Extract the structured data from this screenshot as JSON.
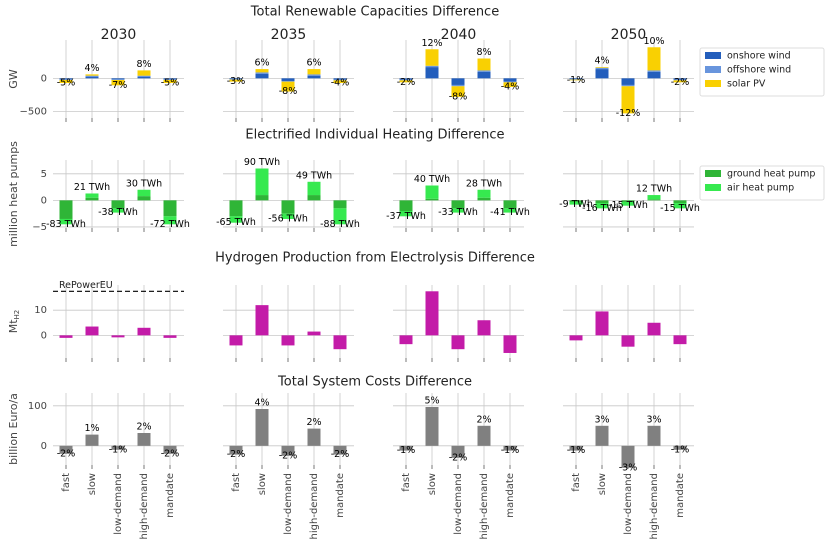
{
  "chart_data": [
    {
      "type": "stacked_bar",
      "title": "Total Renewable Capacities Difference",
      "ylabel": "GW",
      "panel_titles": [
        "2030",
        "2035",
        "2040",
        "2050"
      ],
      "ylim": [
        -600,
        580
      ],
      "yticks": [
        {
          "value": -500,
          "label": "−500"
        },
        0
      ],
      "grid": true,
      "legend": true,
      "series": [
        {
          "name": "onshore wind",
          "color": "#235ebc",
          "values": [
            [
              -15,
              20,
              -15,
              20,
              -15
            ],
            [
              -10,
              70,
              -40,
              40,
              -20
            ],
            [
              -20,
              170,
              -100,
              100,
              -50
            ],
            [
              -15,
              140,
              -100,
              100,
              -20
            ]
          ]
        },
        {
          "name": "offshore wind",
          "color": "#6895dd",
          "values": [
            [
              -10,
              20,
              -10,
              20,
              -10
            ],
            [
              -10,
              20,
              -10,
              20,
              -10
            ],
            [
              -10,
              20,
              -20,
              20,
              -10
            ],
            [
              -5,
              20,
              -20,
              20,
              -10
            ]
          ]
        },
        {
          "name": "solar PV",
          "color": "#f9d002",
          "values": [
            [
              -45,
              20,
              -80,
              80,
              -45
            ],
            [
              -30,
              50,
              -150,
              80,
              -40
            ],
            [
              -30,
              250,
              -160,
              180,
              -70
            ],
            [
              -10,
              10,
              -410,
              350,
              -30
            ]
          ]
        }
      ],
      "bar_labels": [
        [
          "-5%",
          "4%",
          "-7%",
          "8%",
          "-5%"
        ],
        [
          "-3%",
          "6%",
          "-8%",
          "6%",
          "-4%"
        ],
        [
          "-2%",
          "12%",
          "-8%",
          "8%",
          "-4%"
        ],
        [
          "-1%",
          "4%",
          "-12%",
          "10%",
          "-2%"
        ]
      ]
    },
    {
      "type": "stacked_bar",
      "title": "Electrified Individual Heating Difference",
      "ylabel": "million heat pumps",
      "ylim": [
        -5.2,
        7.6
      ],
      "yticks": [
        {
          "value": -5,
          "label": "−5"
        },
        0,
        5
      ],
      "grid": true,
      "legend": true,
      "series": [
        {
          "name": "ground heat pump",
          "color": "#2fb537",
          "values": [
            [
              -3.5,
              0.5,
              -1.5,
              0.8,
              -3
            ],
            [
              -3,
              1,
              -2.5,
              1,
              -1.5
            ],
            [
              -2,
              0.3,
              -1.5,
              0.5,
              -1.5
            ],
            [
              -0.3,
              -0.5,
              -0.3,
              0.2,
              -0.5
            ]
          ]
        },
        {
          "name": "air heat pump",
          "color": "#36e94f",
          "values": [
            [
              -1,
              0.8,
              -0.8,
              1.2,
              -1.5
            ],
            [
              -1.2,
              5,
              -1,
              2.5,
              -3
            ],
            [
              -1,
              2.5,
              -0.8,
              1.5,
              -0.8
            ],
            [
              -0.5,
              -1,
              -0.7,
              0.8,
              -1
            ]
          ]
        }
      ],
      "bar_labels": [
        [
          "-83 TWh",
          "21 TWh",
          "-38 TWh",
          "30 TWh",
          "-72 TWh"
        ],
        [
          "-65 TWh",
          "90 TWh",
          "-56 TWh",
          "49 TWh",
          "-88 TWh"
        ],
        [
          "-37 TWh",
          "40 TWh",
          "-33 TWh",
          "28 TWh",
          "-41 TWh"
        ],
        [
          "-9 TWh",
          "-16 TWh",
          "-15 TWh",
          "12 TWh",
          "-15 TWh"
        ]
      ]
    },
    {
      "type": "bar",
      "title": "Hydrogen Production from Electrolysis Difference",
      "ylabel": "Mt",
      "ylabel_subscript": "H2",
      "ylim": [
        -9,
        20
      ],
      "yticks": [
        0,
        10
      ],
      "grid": true,
      "legend": false,
      "reference_line": {
        "label": "RePowerEU",
        "value": 17.5
      },
      "series": [
        {
          "color": "#c31ba8",
          "values": [
            [
              -1,
              3.5,
              -0.8,
              3,
              -1
            ],
            [
              -4,
              12,
              -4,
              1.5,
              -5.5
            ],
            [
              -3.5,
              17.5,
              -5.5,
              6,
              -7
            ],
            [
              -2,
              9.5,
              -4.5,
              5,
              -3.5
            ]
          ]
        }
      ]
    },
    {
      "type": "bar",
      "title": "Total System Costs Difference",
      "ylabel": "billion Euro/a",
      "categories": [
        "fast",
        "slow",
        "low-demand",
        "high-demand",
        "mandate"
      ],
      "ylim": [
        -48,
        132
      ],
      "yticks": [
        0,
        100
      ],
      "grid": true,
      "legend": false,
      "series": [
        {
          "color": "#808080",
          "values": [
            [
              -20,
              28,
              -10,
              32,
              -20
            ],
            [
              -22,
              92,
              -25,
              43,
              -22
            ],
            [
              -12,
              97,
              -30,
              50,
              -12
            ],
            [
              -12,
              50,
              -55,
              50,
              -10
            ]
          ]
        }
      ],
      "bar_labels": [
        [
          "-2%",
          "1%",
          "-1%",
          "2%",
          "-2%"
        ],
        [
          "-2%",
          "4%",
          "-2%",
          "2%",
          "-2%"
        ],
        [
          "-1%",
          "5%",
          "-2%",
          "2%",
          "-1%"
        ],
        [
          "-1%",
          "3%",
          "-3%",
          "3%",
          "-1%"
        ]
      ]
    }
  ]
}
